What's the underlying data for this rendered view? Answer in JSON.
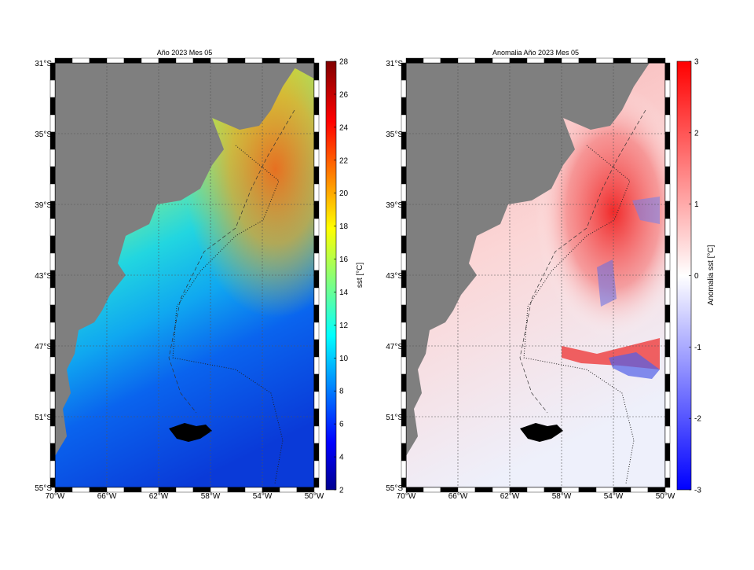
{
  "panels": [
    {
      "title": "Año 2023 Mes 05",
      "lat_labels": [
        "31°S",
        "35°S",
        "39°S",
        "43°S",
        "47°S",
        "51°S",
        "55°S"
      ],
      "lon_labels": [
        "70°W",
        "66°W",
        "62°W",
        "58°W",
        "54°W",
        "50°W"
      ],
      "colorbar": {
        "label": "sst [°C]",
        "ticks": [
          "2",
          "4",
          "6",
          "8",
          "10",
          "12",
          "14",
          "16",
          "18",
          "20",
          "22",
          "24",
          "26",
          "28"
        ],
        "colormap": "jet",
        "range": [
          2,
          28
        ]
      }
    },
    {
      "title": "Anomalia Año 2023 Mes 05",
      "lat_labels": [
        "31°S",
        "35°S",
        "39°S",
        "43°S",
        "47°S",
        "51°S",
        "55°S"
      ],
      "lon_labels": [
        "70°W",
        "66°W",
        "62°W",
        "58°W",
        "54°W",
        "50°W"
      ],
      "colorbar": {
        "label": "Anomalia sst [°C]",
        "ticks": [
          "-3",
          "-2",
          "-1",
          "0",
          "1",
          "2",
          "3"
        ],
        "colormap": "blue-white-red",
        "range": [
          -3,
          3
        ]
      }
    }
  ],
  "colors": {
    "land": "#7f7f7f",
    "grid": "#444444",
    "frame": "#000000"
  }
}
